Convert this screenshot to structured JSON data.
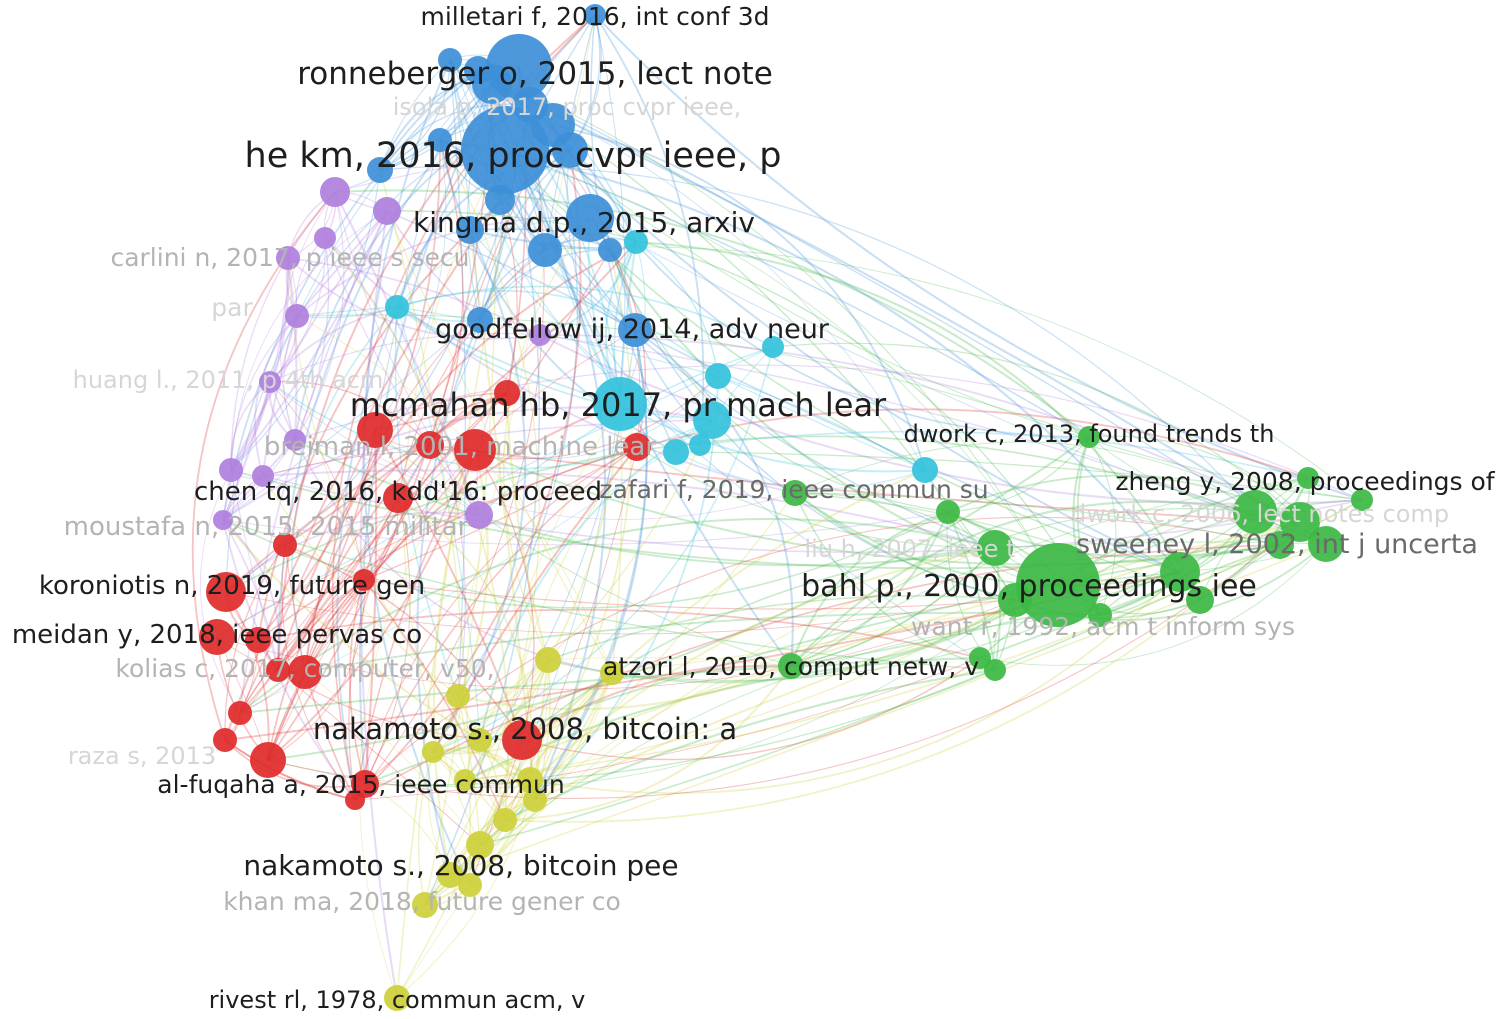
{
  "colors": {
    "blue": "#3d8fd8",
    "cyan": "#33c2dc",
    "purple": "#b07fdd",
    "red": "#e02a2a",
    "green": "#3cb844",
    "yellow": "#cdd03a"
  },
  "labels": [
    {
      "text": "milletari f, 2016, int conf 3d",
      "tone": "dark"
    },
    {
      "text": "ronneberger o, 2015, lect note",
      "tone": "dark"
    },
    {
      "text": "isola p, 2017, proc cvpr ieee,",
      "tone": "faint"
    },
    {
      "text": "he km, 2016, proc cvpr ieee, p",
      "tone": "dark"
    },
    {
      "text": "kingma d.p., 2015, arxiv",
      "tone": "dark"
    },
    {
      "text": "carlini n, 2017, p ieee s secu",
      "tone": "light"
    },
    {
      "text": "par",
      "tone": "faint"
    },
    {
      "text": "goodfellow ij, 2014, adv neur",
      "tone": "dark"
    },
    {
      "text": "huang l., 2011, p 4th acm",
      "tone": "faint"
    },
    {
      "text": "mcmahan hb, 2017, pr mach lear",
      "tone": "dark"
    },
    {
      "text": "breiman l, 2001, machine lear",
      "tone": "light"
    },
    {
      "text": "dwork c, 2013, found trends th",
      "tone": "dark"
    },
    {
      "text": "chen tq, 2016, kdd'16: proceed",
      "tone": "dark"
    },
    {
      "text": "zafari f, 2019, ieee commun su",
      "tone": "mid"
    },
    {
      "text": "zheng y, 2008, proceedings of",
      "tone": "dark"
    },
    {
      "text": "dwork c, 2006, lect notes comp",
      "tone": "faint"
    },
    {
      "text": "moustafa n, 2015, 2015 militar",
      "tone": "light"
    },
    {
      "text": "liu h, 2007, ieee t",
      "tone": "faint"
    },
    {
      "text": "sweeney l, 2002, int j uncerta",
      "tone": "mid"
    },
    {
      "text": "koroniotis n, 2019, future gen",
      "tone": "dark"
    },
    {
      "text": "bahl p., 2000, proceedings iee",
      "tone": "dark"
    },
    {
      "text": "meidan y, 2018, ieee pervas co",
      "tone": "dark"
    },
    {
      "text": "want r, 1992, acm t inform sys",
      "tone": "light"
    },
    {
      "text": "kolias c, 2017, computer, v50,",
      "tone": "light"
    },
    {
      "text": "atzori l, 2010, comput netw, v",
      "tone": "dark"
    },
    {
      "text": "nakamoto s., 2008, bitcoin: a",
      "tone": "dark"
    },
    {
      "text": "raza s, 2013",
      "tone": "faint"
    },
    {
      "text": "al-fuqaha a, 2015, ieee commun",
      "tone": "dark"
    },
    {
      "text": "nakamoto s., 2008, bitcoin pee",
      "tone": "dark"
    },
    {
      "text": "khan ma, 2018, future gener co",
      "tone": "light"
    },
    {
      "text": "rivest rl, 1978, commun acm, v",
      "tone": "dark"
    }
  ]
}
